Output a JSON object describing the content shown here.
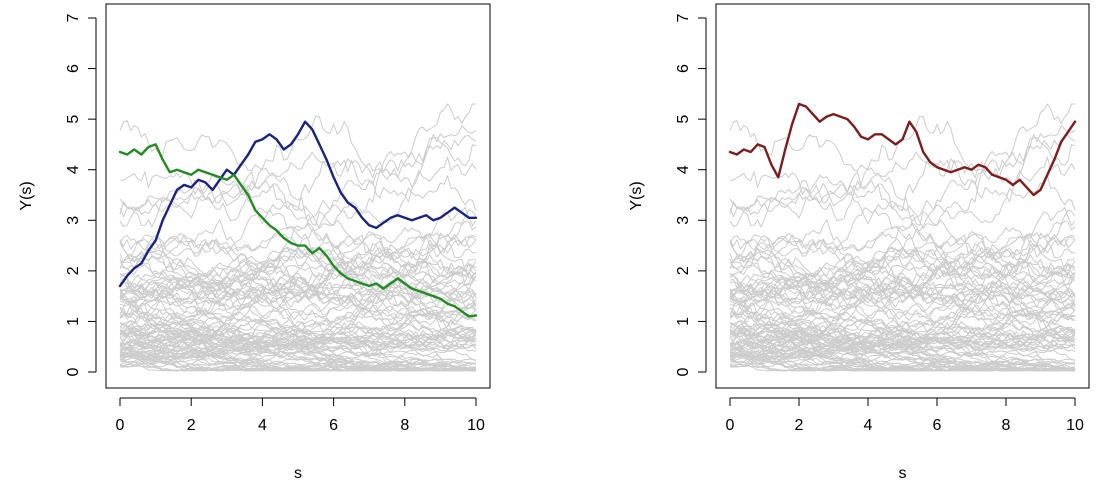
{
  "chart_data": [
    {
      "type": "line",
      "panel": "left",
      "xlabel": "s",
      "ylabel": "Y(s)",
      "xlim": [
        0,
        10
      ],
      "ylim": [
        0,
        7
      ],
      "xticks": [
        0,
        2,
        4,
        6,
        8,
        10
      ],
      "yticks": [
        0,
        1,
        2,
        3,
        4,
        5,
        6,
        7
      ],
      "background_color": "#cccccc",
      "background_series_count": 100,
      "highlighted_series": [
        {
          "color": "#1a237e",
          "x": [
            0,
            0.2,
            0.4,
            0.6,
            0.8,
            1.0,
            1.2,
            1.4,
            1.6,
            1.8,
            2.0,
            2.2,
            2.4,
            2.6,
            2.8,
            3.0,
            3.2,
            3.4,
            3.6,
            3.8,
            4.0,
            4.2,
            4.4,
            4.6,
            4.8,
            5.0,
            5.2,
            5.4,
            5.6,
            5.8,
            6.0,
            6.2,
            6.4,
            6.6,
            6.8,
            7.0,
            7.2,
            7.4,
            7.6,
            7.8,
            8.0,
            8.2,
            8.4,
            8.6,
            8.8,
            9.0,
            9.2,
            9.4,
            9.6,
            9.8,
            10.0
          ],
          "y": [
            1.7,
            1.9,
            2.05,
            2.15,
            2.4,
            2.6,
            3.0,
            3.3,
            3.6,
            3.7,
            3.65,
            3.8,
            3.75,
            3.6,
            3.8,
            4.0,
            3.9,
            4.1,
            4.3,
            4.55,
            4.6,
            4.7,
            4.6,
            4.4,
            4.5,
            4.7,
            4.95,
            4.8,
            4.5,
            4.2,
            3.85,
            3.55,
            3.35,
            3.25,
            3.05,
            2.9,
            2.85,
            2.95,
            3.05,
            3.1,
            3.05,
            3.0,
            3.05,
            3.1,
            3.0,
            3.05,
            3.15,
            3.25,
            3.15,
            3.05,
            3.05
          ]
        },
        {
          "color": "#228b22",
          "x": [
            0,
            0.2,
            0.4,
            0.6,
            0.8,
            1.0,
            1.2,
            1.4,
            1.6,
            1.8,
            2.0,
            2.2,
            2.4,
            2.6,
            2.8,
            3.0,
            3.2,
            3.4,
            3.6,
            3.8,
            4.0,
            4.2,
            4.4,
            4.6,
            4.8,
            5.0,
            5.2,
            5.4,
            5.6,
            5.8,
            6.0,
            6.2,
            6.4,
            6.6,
            6.8,
            7.0,
            7.2,
            7.4,
            7.6,
            7.8,
            8.0,
            8.2,
            8.4,
            8.6,
            8.8,
            9.0,
            9.2,
            9.4,
            9.6,
            9.8,
            10.0
          ],
          "y": [
            4.35,
            4.3,
            4.4,
            4.3,
            4.45,
            4.5,
            4.2,
            3.95,
            4.0,
            3.95,
            3.9,
            4.0,
            3.95,
            3.9,
            3.85,
            3.8,
            3.9,
            3.7,
            3.5,
            3.2,
            3.05,
            2.9,
            2.8,
            2.65,
            2.55,
            2.5,
            2.5,
            2.35,
            2.45,
            2.3,
            2.1,
            1.95,
            1.85,
            1.8,
            1.75,
            1.7,
            1.75,
            1.65,
            1.75,
            1.85,
            1.75,
            1.65,
            1.6,
            1.55,
            1.5,
            1.45,
            1.35,
            1.3,
            1.2,
            1.1,
            1.12
          ]
        }
      ]
    },
    {
      "type": "line",
      "panel": "right",
      "xlabel": "s",
      "ylabel": "Y(s)",
      "xlim": [
        0,
        10
      ],
      "ylim": [
        0,
        7
      ],
      "xticks": [
        0,
        2,
        4,
        6,
        8,
        10
      ],
      "yticks": [
        0,
        1,
        2,
        3,
        4,
        5,
        6,
        7
      ],
      "background_color": "#cccccc",
      "background_series_count": 100,
      "highlighted_series": [
        {
          "color": "#7f1d1d",
          "x": [
            0,
            0.2,
            0.4,
            0.6,
            0.8,
            1.0,
            1.2,
            1.4,
            1.6,
            1.8,
            2.0,
            2.2,
            2.4,
            2.6,
            2.8,
            3.0,
            3.2,
            3.4,
            3.6,
            3.8,
            4.0,
            4.2,
            4.4,
            4.6,
            4.8,
            5.0,
            5.2,
            5.4,
            5.6,
            5.8,
            6.0,
            6.2,
            6.4,
            6.6,
            6.8,
            7.0,
            7.2,
            7.4,
            7.6,
            7.8,
            8.0,
            8.2,
            8.4,
            8.6,
            8.8,
            9.0,
            9.2,
            9.4,
            9.6,
            9.8,
            10.0
          ],
          "y": [
            4.35,
            4.3,
            4.4,
            4.35,
            4.5,
            4.45,
            4.1,
            3.85,
            4.4,
            4.9,
            5.3,
            5.25,
            5.1,
            4.95,
            5.05,
            5.1,
            5.05,
            5.0,
            4.85,
            4.65,
            4.6,
            4.7,
            4.7,
            4.6,
            4.5,
            4.6,
            4.95,
            4.75,
            4.35,
            4.15,
            4.05,
            4.0,
            3.95,
            4.0,
            4.05,
            4.0,
            4.1,
            4.05,
            3.9,
            3.85,
            3.8,
            3.7,
            3.8,
            3.65,
            3.5,
            3.6,
            3.9,
            4.2,
            4.55,
            4.75,
            4.95
          ]
        }
      ]
    }
  ]
}
